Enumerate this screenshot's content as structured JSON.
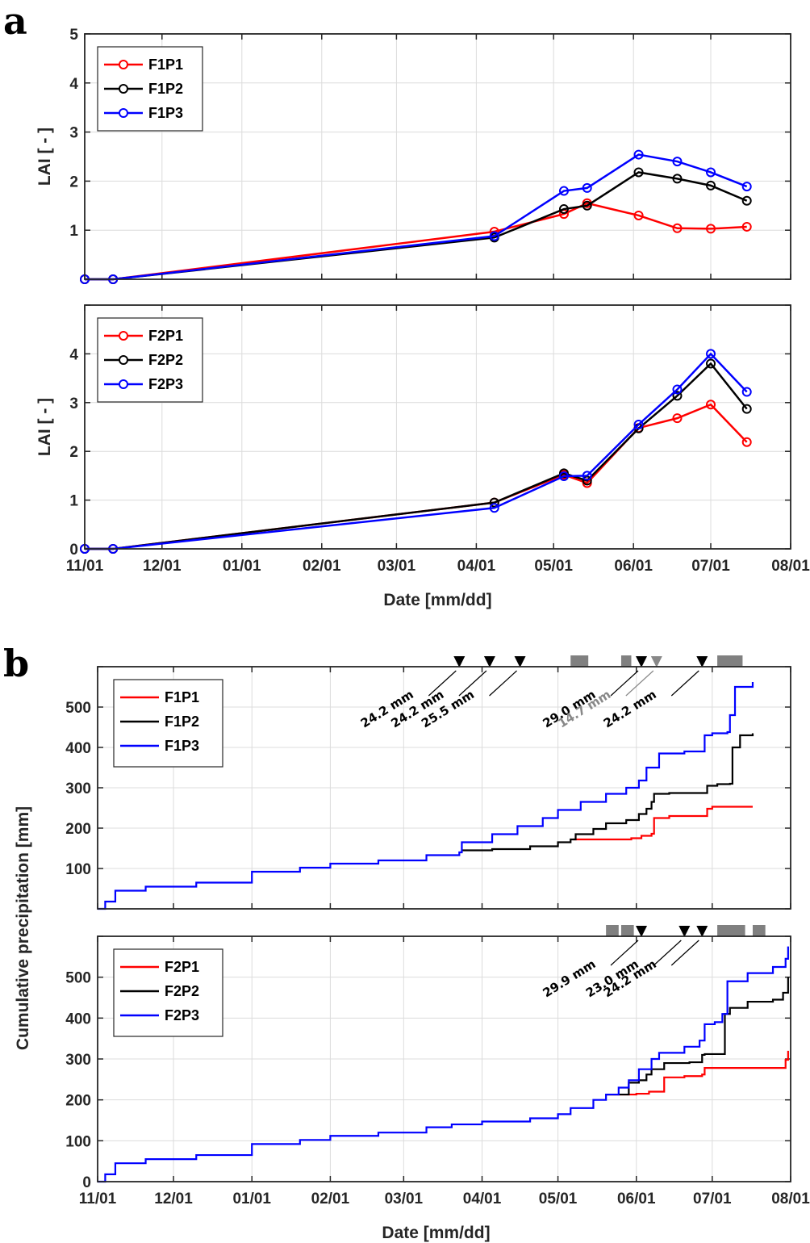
{
  "panels": {
    "a": "a",
    "b": "b"
  },
  "chart_data": [
    {
      "type": "line",
      "ylabel": "LAI [ - ]",
      "ylim": [
        0,
        5
      ],
      "yticks": [
        1,
        2,
        3,
        4,
        5
      ],
      "ytick_labels": [
        "1",
        "2",
        "3",
        "4",
        "5"
      ],
      "xlim": [
        "2015-11-01",
        "2016-08-01"
      ],
      "xtick_labels": [],
      "grid": true,
      "legend_position": "top-left",
      "series": [
        {
          "name": "F1P1",
          "color": "#ff0000",
          "x": [
            "2015-11-01",
            "2015-11-12",
            "2016-04-08",
            "2016-05-05",
            "2016-05-14",
            "2016-06-03",
            "2016-06-18",
            "2016-07-01",
            "2016-07-15"
          ],
          "y": [
            0.0,
            0.0,
            0.97,
            1.33,
            1.55,
            1.3,
            1.04,
            1.03,
            1.07
          ]
        },
        {
          "name": "F1P2",
          "color": "#000000",
          "x": [
            "2015-11-01",
            "2015-11-12",
            "2016-04-08",
            "2016-05-05",
            "2016-05-14",
            "2016-06-03",
            "2016-06-18",
            "2016-07-01",
            "2016-07-15"
          ],
          "y": [
            0.0,
            0.0,
            0.85,
            1.43,
            1.5,
            2.18,
            2.05,
            1.91,
            1.6
          ]
        },
        {
          "name": "F1P3",
          "color": "#0000ff",
          "x": [
            "2015-11-01",
            "2015-11-12",
            "2016-04-08",
            "2016-05-05",
            "2016-05-14",
            "2016-06-03",
            "2016-06-18",
            "2016-07-01",
            "2016-07-15"
          ],
          "y": [
            0.0,
            0.0,
            0.88,
            1.8,
            1.86,
            2.54,
            2.4,
            2.18,
            1.89
          ]
        }
      ]
    },
    {
      "type": "line",
      "ylabel": "LAI [ - ]",
      "xlabel": "Date [mm/dd]",
      "ylim": [
        0,
        5
      ],
      "yticks": [
        0,
        1,
        2,
        3,
        4
      ],
      "ytick_labels": [
        "0",
        "1",
        "2",
        "3",
        "4"
      ],
      "xlim": [
        "2015-11-01",
        "2016-08-01"
      ],
      "xtick_labels": [
        "11/01",
        "12/01",
        "01/01",
        "02/01",
        "03/01",
        "04/01",
        "05/01",
        "06/01",
        "07/01",
        "08/01"
      ],
      "grid": true,
      "legend_position": "top-left",
      "series": [
        {
          "name": "F2P1",
          "color": "#ff0000",
          "x": [
            "2015-11-01",
            "2015-11-12",
            "2016-04-08",
            "2016-05-05",
            "2016-05-14",
            "2016-06-03",
            "2016-06-18",
            "2016-07-01",
            "2016-07-15"
          ],
          "y": [
            0.0,
            0.0,
            0.95,
            1.52,
            1.35,
            2.48,
            2.68,
            2.96,
            2.19
          ]
        },
        {
          "name": "F2P2",
          "color": "#000000",
          "x": [
            "2015-11-01",
            "2015-11-12",
            "2016-04-08",
            "2016-05-05",
            "2016-05-14",
            "2016-06-03",
            "2016-06-18",
            "2016-07-01",
            "2016-07-15"
          ],
          "y": [
            0.0,
            0.0,
            0.95,
            1.55,
            1.4,
            2.47,
            3.14,
            3.8,
            2.87
          ]
        },
        {
          "name": "F2P3",
          "color": "#0000ff",
          "x": [
            "2015-11-01",
            "2015-11-12",
            "2016-04-08",
            "2016-05-05",
            "2016-05-14",
            "2016-06-03",
            "2016-06-18",
            "2016-07-01",
            "2016-07-15"
          ],
          "y": [
            0.0,
            0.0,
            0.84,
            1.49,
            1.5,
            2.55,
            3.27,
            4.0,
            3.22
          ]
        }
      ]
    },
    {
      "type": "line",
      "ylabel": "Cumulative precipitation [mm]",
      "ylim": [
        0,
        600
      ],
      "yticks": [
        100,
        200,
        300,
        400,
        500
      ],
      "ytick_labels": [
        "100",
        "200",
        "300",
        "400",
        "500"
      ],
      "xlim": [
        "2015-11-01",
        "2016-08-01"
      ],
      "xtick_labels": [],
      "grid": true,
      "legend_position": "top-left",
      "series": [
        {
          "name": "F1P1",
          "color": "#ff0000",
          "x": [
            "2016-05-07",
            "2016-05-15",
            "2016-05-25",
            "2016-05-30",
            "2016-06-01",
            "2016-06-03",
            "2016-06-05",
            "2016-06-07",
            "2016-06-08",
            "2016-06-14",
            "2016-06-28",
            "2016-06-29",
            "2016-07-01",
            "2016-07-17"
          ],
          "y": [
            172,
            172,
            172,
            175,
            175,
            181,
            181,
            186,
            225,
            230,
            230,
            248,
            253,
            253
          ]
        },
        {
          "name": "F1P2",
          "color": "#000000",
          "x": [
            "2016-03-24",
            "2016-04-05",
            "2016-04-20",
            "2016-05-01",
            "2016-05-06",
            "2016-05-08",
            "2016-05-15",
            "2016-05-20",
            "2016-05-28",
            "2016-06-02",
            "2016-06-05",
            "2016-06-07",
            "2016-06-08",
            "2016-06-14",
            "2016-06-28",
            "2016-06-29",
            "2016-07-03",
            "2016-07-08",
            "2016-07-09",
            "2016-07-12",
            "2016-07-17"
          ],
          "y": [
            145,
            148,
            155,
            165,
            172,
            185,
            198,
            212,
            220,
            235,
            248,
            265,
            285,
            287,
            287,
            305,
            309,
            310,
            400,
            430,
            435
          ]
        },
        {
          "name": "F1P3",
          "color": "#0000ff",
          "x": [
            "2015-11-01",
            "2015-11-04",
            "2015-11-08",
            "2015-11-20",
            "2015-12-10",
            "2016-01-01",
            "2016-01-20",
            "2016-02-01",
            "2016-02-20",
            "2016-03-10",
            "2016-03-23",
            "2016-03-24",
            "2016-04-05",
            "2016-04-15",
            "2016-04-25",
            "2016-05-01",
            "2016-05-10",
            "2016-05-20",
            "2016-05-28",
            "2016-06-02",
            "2016-06-05",
            "2016-06-10",
            "2016-06-20",
            "2016-06-26",
            "2016-06-28",
            "2016-07-01",
            "2016-07-07",
            "2016-07-08",
            "2016-07-10",
            "2016-07-17"
          ],
          "y": [
            0,
            18,
            45,
            55,
            65,
            92,
            102,
            112,
            120,
            133,
            140,
            165,
            185,
            205,
            225,
            245,
            265,
            285,
            300,
            318,
            350,
            385,
            390,
            390,
            430,
            435,
            438,
            480,
            550,
            562
          ]
        }
      ],
      "events": [
        {
          "date": "2016-03-23",
          "label": "24.2 mm",
          "color": "#000000"
        },
        {
          "date": "2016-04-04",
          "label": "24.2 mm",
          "color": "#000000"
        },
        {
          "date": "2016-04-16",
          "label": "25.5 mm",
          "color": "#000000"
        },
        {
          "date": "2016-06-03",
          "label": "29.0 mm",
          "color": "#000000"
        },
        {
          "date": "2016-06-09",
          "label": "14.7 mm",
          "color": "#888888"
        },
        {
          "date": "2016-06-27",
          "label": "24.2 mm",
          "color": "#000000"
        }
      ],
      "irrigation_periods": [
        [
          "2016-05-06",
          "2016-05-13"
        ],
        [
          "2016-05-26",
          "2016-05-30"
        ],
        [
          "2016-07-03",
          "2016-07-13"
        ]
      ]
    },
    {
      "type": "line",
      "ylabel": "Cumulative precipitation [mm]",
      "xlabel": "Date [mm/dd]",
      "ylim": [
        0,
        600
      ],
      "yticks": [
        0,
        100,
        200,
        300,
        400,
        500
      ],
      "ytick_labels": [
        "0",
        "100",
        "200",
        "300",
        "400",
        "500"
      ],
      "xlim": [
        "2015-11-01",
        "2016-08-01"
      ],
      "xtick_labels": [
        "11/01",
        "12/01",
        "01/01",
        "02/01",
        "03/01",
        "04/01",
        "05/01",
        "06/01",
        "07/01",
        "08/01"
      ],
      "grid": true,
      "legend_position": "top-left",
      "series": [
        {
          "name": "F2P1",
          "color": "#ff0000",
          "x": [
            "2016-05-20",
            "2016-05-29",
            "2016-06-01",
            "2016-06-05",
            "2016-06-06",
            "2016-06-12",
            "2016-06-20",
            "2016-06-27",
            "2016-06-28",
            "2016-07-15",
            "2016-07-28",
            "2016-07-30",
            "2016-07-31"
          ],
          "y": [
            213,
            213,
            215,
            215,
            220,
            255,
            258,
            262,
            278,
            278,
            278,
            298,
            320
          ]
        },
        {
          "name": "F2P2",
          "color": "#000000",
          "x": [
            "2016-05-20",
            "2016-05-29",
            "2016-06-02",
            "2016-06-05",
            "2016-06-07",
            "2016-06-12",
            "2016-06-22",
            "2016-06-27",
            "2016-06-28",
            "2016-07-05",
            "2016-07-06",
            "2016-07-08",
            "2016-07-15",
            "2016-07-25",
            "2016-07-29",
            "2016-07-31"
          ],
          "y": [
            213,
            242,
            248,
            262,
            275,
            290,
            292,
            310,
            312,
            312,
            410,
            425,
            440,
            445,
            462,
            500
          ]
        },
        {
          "name": "F2P3",
          "color": "#0000ff",
          "x": [
            "2015-11-01",
            "2015-11-04",
            "2015-11-08",
            "2015-11-20",
            "2015-12-10",
            "2016-01-01",
            "2016-01-20",
            "2016-02-01",
            "2016-02-20",
            "2016-03-10",
            "2016-03-20",
            "2016-04-01",
            "2016-04-20",
            "2016-05-01",
            "2016-05-06",
            "2016-05-15",
            "2016-05-20",
            "2016-05-25",
            "2016-05-29",
            "2016-06-02",
            "2016-06-07",
            "2016-06-10",
            "2016-06-20",
            "2016-06-26",
            "2016-06-28",
            "2016-07-02",
            "2016-07-05",
            "2016-07-07",
            "2016-07-15",
            "2016-07-25",
            "2016-07-30",
            "2016-07-31"
          ],
          "y": [
            0,
            18,
            45,
            55,
            65,
            92,
            102,
            112,
            120,
            133,
            140,
            147,
            155,
            165,
            180,
            200,
            213,
            230,
            248,
            275,
            300,
            315,
            330,
            345,
            385,
            390,
            410,
            490,
            510,
            525,
            545,
            575
          ]
        }
      ],
      "events": [
        {
          "date": "2016-06-03",
          "label": "29.9 mm",
          "color": "#000000"
        },
        {
          "date": "2016-06-20",
          "label": "23.0 mm",
          "color": "#000000"
        },
        {
          "date": "2016-06-27",
          "label": "24.2 mm",
          "color": "#000000"
        }
      ],
      "irrigation_periods": [
        [
          "2016-05-20",
          "2016-05-25"
        ],
        [
          "2016-05-26",
          "2016-05-31"
        ],
        [
          "2016-07-03",
          "2016-07-14"
        ],
        [
          "2016-07-17",
          "2016-07-22"
        ]
      ]
    }
  ]
}
